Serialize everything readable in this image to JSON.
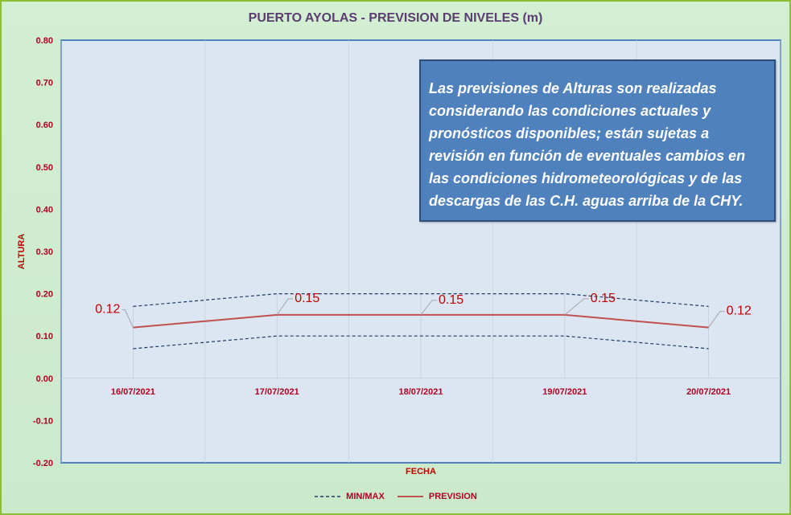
{
  "chart_data": {
    "type": "line",
    "title": "PUERTO AYOLAS - PREVISION DE NIVELES (m)",
    "xlabel": "FECHA",
    "ylabel": "ALTURA",
    "categories": [
      "16/07/2021",
      "17/07/2021",
      "18/07/2021",
      "19/07/2021",
      "20/07/2021"
    ],
    "ylim": [
      -0.2,
      0.8
    ],
    "yticks": [
      "0.80",
      "0.70",
      "0.60",
      "0.50",
      "0.40",
      "0.30",
      "0.20",
      "0.10",
      "0.00",
      "-0.10",
      "-0.20"
    ],
    "series": [
      {
        "name": "MIN/MAX",
        "style": "dashed",
        "color": "#1f3a68",
        "values": [
          0.07,
          0.1,
          0.1,
          0.1,
          0.07
        ]
      },
      {
        "name": "MIN/MAX",
        "style": "dashed",
        "color": "#1f3a68",
        "values": [
          0.17,
          0.2,
          0.2,
          0.2,
          0.17
        ]
      },
      {
        "name": "PREVISION",
        "style": "solid",
        "color": "#c0504d",
        "values": [
          0.12,
          0.15,
          0.15,
          0.15,
          0.12
        ]
      }
    ],
    "data_labels": [
      "0.12",
      "0.15",
      "0.15",
      "0.15",
      "0.12"
    ],
    "grid": true,
    "legend_position": "bottom"
  },
  "note": {
    "lines": [
      "Las previsiones de Alturas son realizadas",
      "considerando las condiciones actuales y",
      "pronósticos disponibles;  están sujetas a",
      "revisión en función de eventuales cambios en",
      "las condiciones hidrometeorológicas y de las",
      "descargas de las C.H. aguas arriba de la CHY."
    ]
  },
  "legend": {
    "items": [
      {
        "label": "MIN/MAX",
        "style": "dashed",
        "color": "#1f3a68"
      },
      {
        "label": "PREVISION",
        "style": "solid",
        "color": "#c0504d"
      }
    ]
  },
  "colors": {
    "plot_background": "#dce6f2",
    "plot_border": "#4f81bd",
    "note_background": "#4f81bd",
    "title_color": "#5b3c73",
    "label_color": "#c00000"
  }
}
